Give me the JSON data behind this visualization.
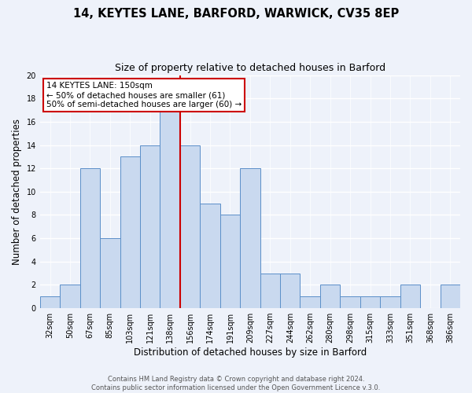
{
  "title": "14, KEYTES LANE, BARFORD, WARWICK, CV35 8EP",
  "subtitle": "Size of property relative to detached houses in Barford",
  "xlabel": "Distribution of detached houses by size in Barford",
  "ylabel": "Number of detached properties",
  "bin_labels": [
    "32sqm",
    "50sqm",
    "67sqm",
    "85sqm",
    "103sqm",
    "121sqm",
    "138sqm",
    "156sqm",
    "174sqm",
    "191sqm",
    "209sqm",
    "227sqm",
    "244sqm",
    "262sqm",
    "280sqm",
    "298sqm",
    "315sqm",
    "333sqm",
    "351sqm",
    "368sqm",
    "386sqm"
  ],
  "bar_values": [
    1,
    2,
    12,
    6,
    13,
    14,
    17,
    14,
    9,
    8,
    12,
    3,
    3,
    1,
    2,
    1,
    1,
    1,
    2,
    0,
    2
  ],
  "bar_color": "#c9d9ef",
  "bar_edge_color": "#5b8fc9",
  "vline_index": 6.5,
  "vline_color": "#cc0000",
  "ylim": [
    0,
    20
  ],
  "yticks": [
    0,
    2,
    4,
    6,
    8,
    10,
    12,
    14,
    16,
    18,
    20
  ],
  "annotation_title": "14 KEYTES LANE: 150sqm",
  "annotation_line1": "← 50% of detached houses are smaller (61)",
  "annotation_line2": "50% of semi-detached houses are larger (60) →",
  "annotation_box_color": "#ffffff",
  "annotation_box_edge": "#cc0000",
  "footer_line1": "Contains HM Land Registry data © Crown copyright and database right 2024.",
  "footer_line2": "Contains public sector information licensed under the Open Government Licence v.3.0.",
  "bg_color": "#eef2fa",
  "grid_color": "#ffffff",
  "title_fontsize": 10.5,
  "subtitle_fontsize": 9,
  "axis_label_fontsize": 8.5,
  "tick_fontsize": 7,
  "annotation_fontsize": 7.5,
  "footer_fontsize": 6
}
